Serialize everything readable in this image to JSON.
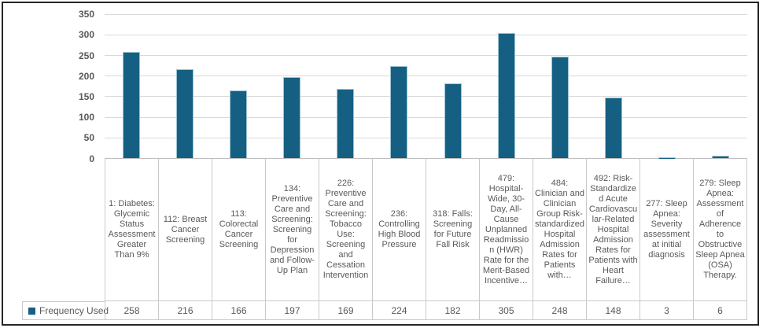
{
  "chart_data": {
    "type": "bar",
    "title": "",
    "xlabel": "",
    "ylabel": "",
    "ylim": [
      0,
      350
    ],
    "ytick_step": 50,
    "ytick_labels": [
      "0",
      "50",
      "100",
      "150",
      "200",
      "250",
      "300",
      "350"
    ],
    "grid": true,
    "legend_position": "data-table-left",
    "bar_color": "#156082",
    "categories": [
      "1: Diabetes: Glycemic Status Assessment Greater Than 9%",
      "112: Breast Cancer Screening",
      "113: Colorectal Cancer Screening",
      "134: Preventive Care and Screening: Screening for Depression and Follow-Up Plan",
      "226: Preventive Care and Screening: Tobacco Use: Screening and Cessation Intervention",
      "236: Controlling High Blood Pressure",
      "318: Falls: Screening for Future Fall Risk",
      "479: Hospital-Wide, 30-Day, All-Cause Unplanned Readmission (HWR) Rate for the Merit-Based Incentive…",
      "484: Clinician and Clinician Group Risk-standardized Hospital Admission Rates for Patients with…",
      "492: Risk-Standardized Acute Cardiovascular-Related Hospital Admission Rates for Patients with Heart Failure…",
      "277: Sleep Apnea: Severity assessment at initial diagnosis",
      "279: Sleep Apnea: Assessment of Adherence to Obstructive Sleep Apnea (OSA) Therapy."
    ],
    "series": [
      {
        "name": "Frequency Used",
        "values": [
          258,
          216,
          166,
          197,
          169,
          224,
          182,
          305,
          248,
          148,
          3,
          6
        ]
      }
    ]
  },
  "legend": {
    "label": "Frequency Used"
  },
  "colors": {
    "bar": "#156082",
    "bar_edge": "#9dc3d4",
    "gridline": "#d9d9d9",
    "axis_line": "#bfbfbf",
    "table_border": "#c9c9c9",
    "text": "#595959",
    "frame_border": "#262626"
  }
}
